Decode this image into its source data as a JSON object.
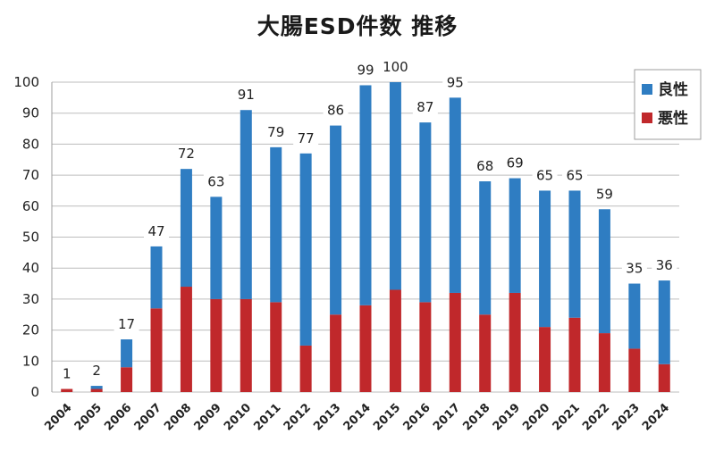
{
  "chart_data": {
    "type": "bar",
    "stacked": true,
    "title": "大腸ESD件数 推移",
    "xlabel": "",
    "ylabel": "",
    "ylim": [
      0,
      100
    ],
    "yticks": [
      0,
      10,
      20,
      30,
      40,
      50,
      60,
      70,
      80,
      90,
      100
    ],
    "grid": true,
    "legend_position": "top-right",
    "categories": [
      "2004",
      "2005",
      "2006",
      "2007",
      "2008",
      "2009",
      "2010",
      "2011",
      "2012",
      "2013",
      "2014",
      "2015",
      "2016",
      "2017",
      "2018",
      "2019",
      "2020",
      "2021",
      "2022",
      "2023",
      "2024"
    ],
    "series": [
      {
        "name": "悪性",
        "color": "#c0282b",
        "values": [
          1,
          1,
          8,
          27,
          34,
          30,
          30,
          29,
          15,
          25,
          28,
          33,
          29,
          32,
          25,
          32,
          21,
          24,
          19,
          14,
          9
        ]
      },
      {
        "name": "良性",
        "color": "#2f7dc2",
        "values": [
          0,
          1,
          9,
          20,
          38,
          33,
          61,
          50,
          62,
          61,
          71,
          67,
          58,
          63,
          43,
          37,
          44,
          41,
          40,
          21,
          27
        ]
      }
    ],
    "totals": [
      1,
      2,
      17,
      47,
      72,
      63,
      91,
      79,
      77,
      86,
      99,
      100,
      87,
      95,
      68,
      69,
      65,
      65,
      59,
      35,
      36
    ],
    "legend_order": [
      "良性",
      "悪性"
    ]
  }
}
